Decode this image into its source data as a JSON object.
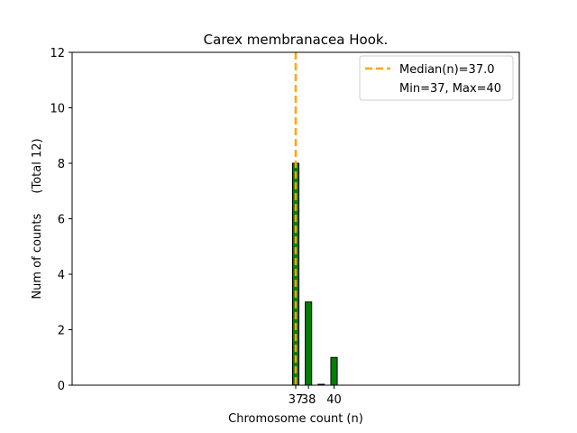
{
  "chart_data": {
    "type": "bar",
    "title": "Carex membranacea Hook.",
    "xlabel": "Chromosome count (n)",
    "ylabel": "Num of counts",
    "ylabel_total": "(Total 12)",
    "ylim": [
      0,
      12
    ],
    "xlim": [
      19.5,
      54.5
    ],
    "yticks": [
      0,
      2,
      4,
      6,
      8,
      10,
      12
    ],
    "xticks": [
      37,
      38,
      40
    ],
    "bars": [
      {
        "x": 37,
        "value": 8
      },
      {
        "x": 38,
        "value": 3
      },
      {
        "x": 39,
        "value": 0
      },
      {
        "x": 40,
        "value": 1
      }
    ],
    "bar_color": "#008000",
    "median_color": "#FFA500",
    "median_value": 37,
    "legend": {
      "position": "top-right",
      "median_label": "Median(n)=37.0",
      "range_label": "Min=37, Max=40"
    },
    "grid": false
  }
}
